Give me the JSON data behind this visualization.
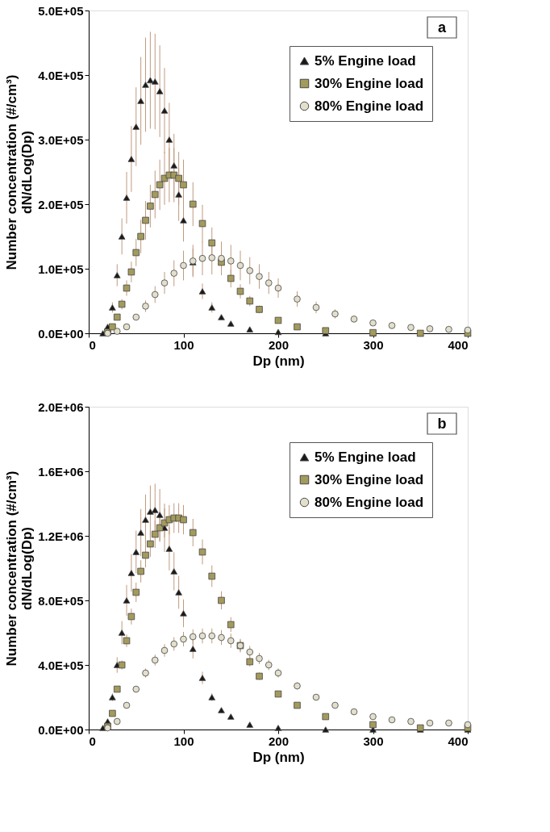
{
  "chart_data": [
    {
      "type": "scatter",
      "xlabel": "Dp (nm)",
      "ylabel": "Number concentration  (#/cm³)\ndN/dLog(Dp)",
      "annotations": [
        "a"
      ],
      "legend": "top right",
      "grid": false,
      "xlim": [
        0,
        400
      ],
      "xticks": [
        0,
        100,
        200,
        300,
        400
      ],
      "ylim": [
        0,
        500000
      ],
      "yticks": [
        {
          "value": 0,
          "label": "0.0E+00"
        },
        {
          "value": 100000,
          "label": "1.0E+05"
        },
        {
          "value": 200000,
          "label": "2.0E+05"
        },
        {
          "value": 300000,
          "label": "3.0E+05"
        },
        {
          "value": 400000,
          "label": "4.0E+05"
        },
        {
          "value": 500000,
          "label": "5.0E+05"
        }
      ],
      "series": [
        {
          "name": "5%   Engine load",
          "color": "#1a1a1a",
          "marker": "triangle",
          "x": [
            15,
            20,
            25,
            30,
            35,
            40,
            45,
            50,
            55,
            60,
            65,
            70,
            75,
            80,
            85,
            90,
            95,
            100,
            110,
            120,
            130,
            140,
            150,
            170,
            200,
            250,
            300,
            350,
            400
          ],
          "values": [
            0,
            10000,
            40000,
            90000,
            150000,
            210000,
            270000,
            320000,
            360000,
            385000,
            392000,
            390000,
            375000,
            345000,
            300000,
            260000,
            215000,
            175000,
            110000,
            65000,
            40000,
            25000,
            15000,
            6000,
            2000,
            0,
            0,
            0,
            0
          ],
          "errors": [
            null,
            null,
            8000,
            17000,
            28000,
            40000,
            51000,
            61000,
            68000,
            73000,
            75000,
            74000,
            71000,
            66000,
            57000,
            49000,
            41000,
            33000,
            21000,
            12000,
            8000,
            null,
            null,
            null,
            null,
            null,
            null,
            null,
            null
          ]
        },
        {
          "name": "30% Engine load",
          "color": "#a39a5c",
          "marker": "square",
          "x": [
            20,
            25,
            30,
            35,
            40,
            45,
            50,
            55,
            60,
            65,
            70,
            75,
            80,
            85,
            90,
            95,
            100,
            110,
            120,
            130,
            140,
            150,
            160,
            170,
            180,
            200,
            220,
            250,
            300,
            350,
            400
          ],
          "values": [
            2000,
            10000,
            25000,
            45000,
            70000,
            95000,
            125000,
            150000,
            175000,
            197000,
            215000,
            230000,
            240000,
            245000,
            245000,
            240000,
            230000,
            200000,
            170000,
            140000,
            110000,
            85000,
            65000,
            50000,
            37000,
            20000,
            10000,
            4000,
            1000,
            0,
            0
          ],
          "errors": [
            null,
            null,
            null,
            8000,
            12000,
            16000,
            21000,
            26000,
            30000,
            33000,
            37000,
            39000,
            41000,
            42000,
            42000,
            41000,
            39000,
            34000,
            29000,
            24000,
            19000,
            14000,
            11000,
            8000,
            6000,
            null,
            null,
            null,
            null,
            null,
            null
          ]
        },
        {
          "name": "80% Engine load",
          "color": "#e2dfcc",
          "marker": "circle",
          "x": [
            20,
            30,
            40,
            50,
            60,
            70,
            80,
            90,
            100,
            110,
            120,
            130,
            140,
            150,
            160,
            170,
            180,
            190,
            200,
            220,
            240,
            260,
            280,
            300,
            320,
            340,
            360,
            380,
            400
          ],
          "values": [
            0,
            3000,
            10000,
            25000,
            42000,
            60000,
            78000,
            93000,
            105000,
            112000,
            116000,
            117000,
            116000,
            112000,
            105000,
            97000,
            88000,
            78000,
            70000,
            53000,
            40000,
            30000,
            22000,
            16000,
            12000,
            9000,
            7000,
            6000,
            5000
          ],
          "errors": [
            null,
            null,
            null,
            null,
            9000,
            13000,
            17000,
            20000,
            23000,
            25000,
            26000,
            26000,
            26000,
            25000,
            23000,
            21000,
            19000,
            17000,
            15000,
            12000,
            9000,
            7000,
            null,
            null,
            null,
            null,
            null,
            null,
            null
          ]
        }
      ]
    },
    {
      "type": "scatter",
      "xlabel": "Dp (nm)",
      "ylabel": "Number concentration  (#/cm³)\ndN/dLog(Dp)",
      "annotations": [
        "b"
      ],
      "legend": "top right",
      "grid": false,
      "xlim": [
        0,
        400
      ],
      "xticks": [
        0,
        100,
        200,
        300,
        400
      ],
      "ylim": [
        0,
        2000000
      ],
      "yticks": [
        {
          "value": 0,
          "label": "0.0E+00"
        },
        {
          "value": 400000,
          "label": "4.0E+05"
        },
        {
          "value": 800000,
          "label": "8.0E+05"
        },
        {
          "value": 1200000,
          "label": "1.2E+06"
        },
        {
          "value": 1600000,
          "label": "1.6E+06"
        },
        {
          "value": 2000000,
          "label": "2.0E+06"
        }
      ],
      "series": [
        {
          "name": "5%   Engine load",
          "color": "#1a1a1a",
          "marker": "triangle",
          "x": [
            15,
            20,
            25,
            30,
            35,
            40,
            45,
            50,
            55,
            60,
            65,
            70,
            75,
            80,
            85,
            90,
            95,
            100,
            110,
            120,
            130,
            140,
            150,
            170,
            200,
            250,
            300,
            350,
            400
          ],
          "values": [
            10000,
            50000,
            200000,
            400000,
            600000,
            800000,
            970000,
            1100000,
            1220000,
            1300000,
            1350000,
            1360000,
            1330000,
            1250000,
            1120000,
            980000,
            850000,
            720000,
            500000,
            320000,
            200000,
            120000,
            80000,
            30000,
            10000,
            0,
            0,
            0,
            0
          ],
          "errors": [
            null,
            null,
            24000,
            48000,
            72000,
            96000,
            116000,
            132000,
            146000,
            156000,
            162000,
            163000,
            160000,
            150000,
            134000,
            118000,
            102000,
            86000,
            60000,
            38000,
            24000,
            null,
            null,
            null,
            null,
            null,
            null,
            null,
            null
          ]
        },
        {
          "name": "30% Engine load",
          "color": "#a39a5c",
          "marker": "square",
          "x": [
            20,
            25,
            30,
            35,
            40,
            45,
            50,
            55,
            60,
            65,
            70,
            75,
            80,
            85,
            90,
            95,
            100,
            110,
            120,
            130,
            140,
            150,
            160,
            170,
            180,
            200,
            220,
            250,
            300,
            350,
            400
          ],
          "values": [
            20000,
            100000,
            250000,
            400000,
            550000,
            700000,
            850000,
            980000,
            1080000,
            1150000,
            1210000,
            1250000,
            1280000,
            1300000,
            1310000,
            1310000,
            1300000,
            1220000,
            1100000,
            950000,
            800000,
            650000,
            520000,
            420000,
            330000,
            220000,
            150000,
            80000,
            30000,
            10000,
            10000
          ],
          "errors": [
            null,
            null,
            null,
            28000,
            39000,
            49000,
            60000,
            69000,
            76000,
            81000,
            85000,
            88000,
            90000,
            91000,
            92000,
            92000,
            91000,
            85000,
            77000,
            67000,
            56000,
            46000,
            36000,
            29000,
            23000,
            null,
            null,
            null,
            null,
            null,
            null
          ]
        },
        {
          "name": "80% Engine load",
          "color": "#e2dfcc",
          "marker": "circle",
          "x": [
            20,
            30,
            40,
            50,
            60,
            70,
            80,
            90,
            100,
            110,
            120,
            130,
            140,
            150,
            160,
            170,
            180,
            190,
            200,
            220,
            240,
            260,
            280,
            300,
            320,
            340,
            360,
            380,
            400
          ],
          "values": [
            10000,
            50000,
            150000,
            250000,
            350000,
            430000,
            490000,
            530000,
            560000,
            575000,
            580000,
            580000,
            570000,
            550000,
            520000,
            480000,
            440000,
            400000,
            350000,
            270000,
            200000,
            150000,
            110000,
            80000,
            60000,
            50000,
            40000,
            40000,
            30000
          ],
          "errors": [
            null,
            null,
            null,
            20000,
            28000,
            34000,
            39000,
            42000,
            45000,
            46000,
            46000,
            46000,
            46000,
            44000,
            42000,
            38000,
            35000,
            32000,
            28000,
            22000,
            null,
            null,
            null,
            null,
            null,
            null,
            null,
            null,
            null
          ]
        }
      ]
    }
  ]
}
